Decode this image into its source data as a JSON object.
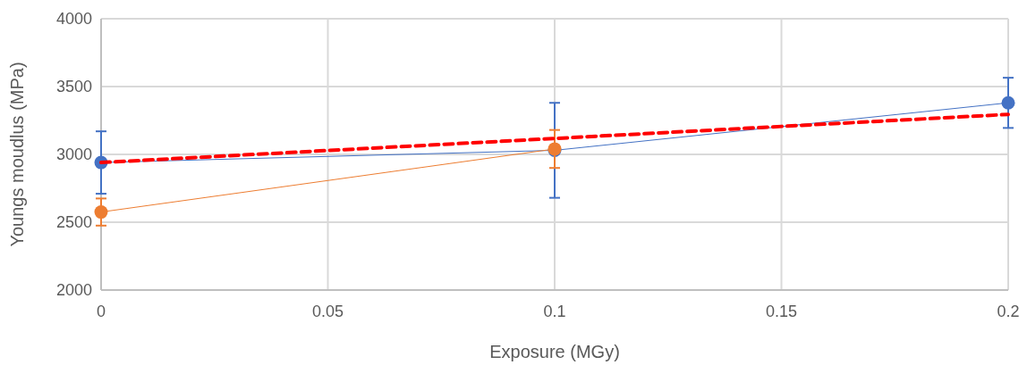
{
  "chart_data": {
    "type": "line",
    "xlabel": "Exposure (MGy)",
    "ylabel": "Youngs moudlus (MPa)",
    "x": [
      0,
      0.1,
      0.2
    ],
    "xlim": [
      0,
      0.2
    ],
    "xticks": [
      0,
      0.05,
      0.1,
      0.15,
      0.2
    ],
    "ylim": [
      2000,
      4000
    ],
    "yticks": [
      2000,
      2500,
      3000,
      3500,
      4000
    ],
    "grid": true,
    "marker": "circle",
    "series": [
      {
        "color": "#4472c4",
        "values": [
          2940,
          3030,
          3380
        ],
        "errors": [
          230,
          350,
          185
        ]
      },
      {
        "color": "#ed7d31",
        "x": [
          0,
          0.1
        ],
        "values": [
          2575,
          3040
        ],
        "errors": [
          100,
          140
        ]
      },
      {
        "type": "line",
        "color": "#ff0000",
        "x": [
          0,
          0.2
        ],
        "values": [
          2940,
          3295
        ],
        "line_style": "dashed",
        "marker": "none"
      }
    ]
  }
}
